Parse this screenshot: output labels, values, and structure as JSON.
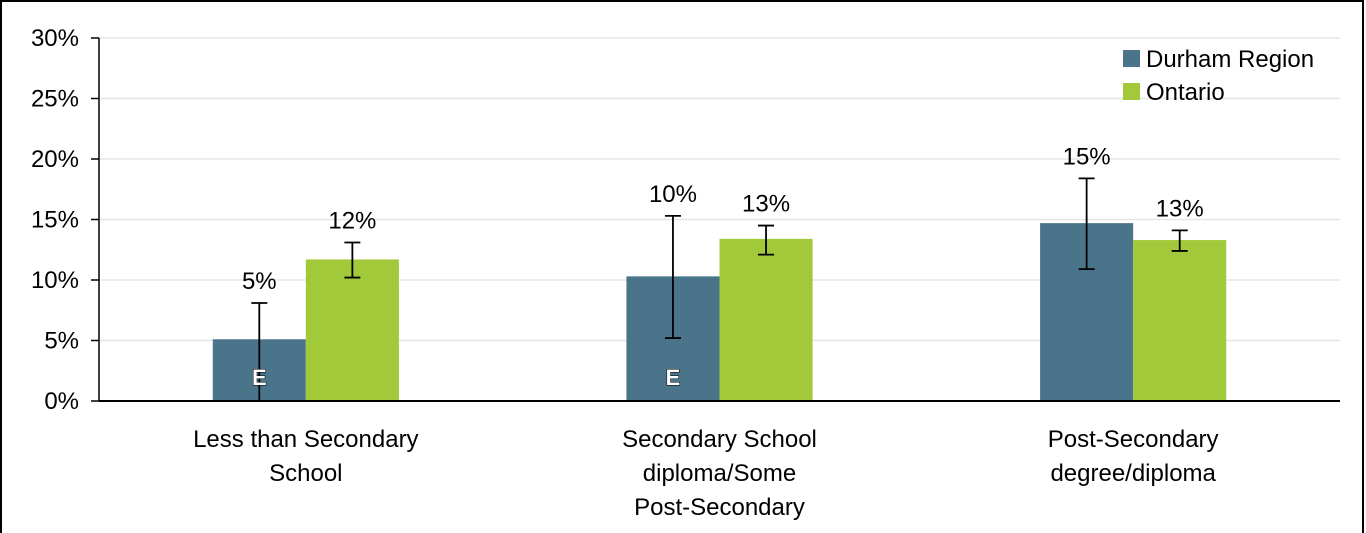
{
  "chart_data": {
    "type": "bar",
    "categories": [
      [
        "Less than Secondary",
        "School"
      ],
      [
        "Secondary School",
        "diploma/Some",
        "Post-Secondary"
      ],
      [
        "Post-Secondary",
        "degree/diploma"
      ]
    ],
    "series": [
      {
        "name": "Durham Region",
        "color": "#4a7489",
        "values": [
          5.1,
          10.3,
          14.7
        ],
        "labels": [
          "5%",
          "10%",
          "15%"
        ],
        "error_low": [
          0,
          5.2,
          10.9
        ],
        "error_high": [
          8.1,
          15.3,
          18.4
        ],
        "flags": [
          "E",
          "E",
          ""
        ]
      },
      {
        "name": "Ontario",
        "color": "#a2c93a",
        "values": [
          11.7,
          13.4,
          13.3
        ],
        "labels": [
          "12%",
          "13%",
          "13%"
        ],
        "error_low": [
          10.2,
          12.1,
          12.4
        ],
        "error_high": [
          13.1,
          14.5,
          14.1
        ],
        "flags": [
          "",
          "",
          ""
        ]
      }
    ],
    "ylim": [
      0,
      30
    ],
    "yticks": [
      0,
      5,
      10,
      15,
      20,
      25,
      30
    ],
    "ytick_labels": [
      "0%",
      "5%",
      "10%",
      "15%",
      "20%",
      "25%",
      "30%"
    ],
    "grid": true,
    "legend_position": "top-right",
    "title": "",
    "xlabel": "",
    "ylabel": ""
  }
}
